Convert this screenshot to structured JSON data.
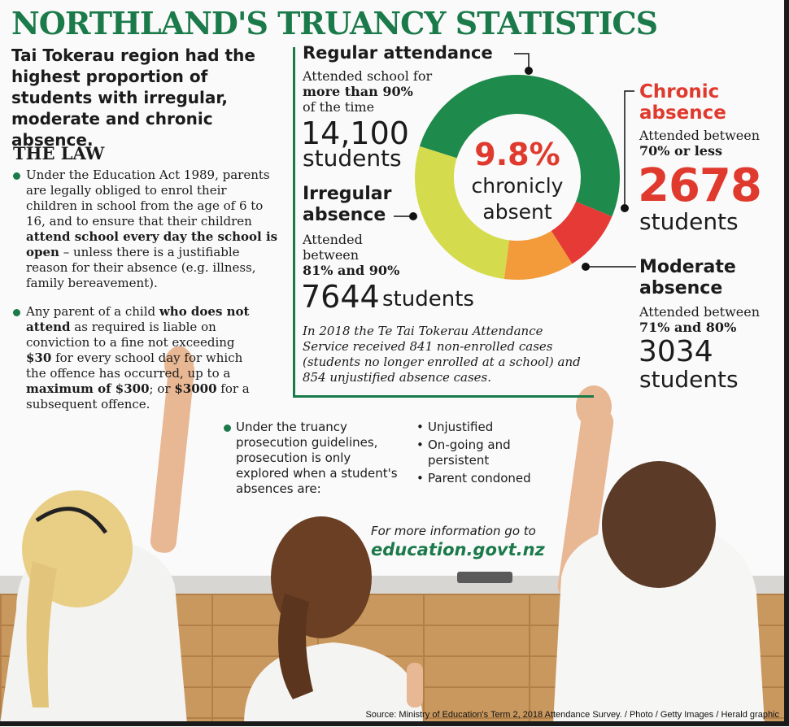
{
  "title": "NORTHLAND'S TRUANCY STATISTICS",
  "intro": "Tai Tokerau region had the highest proportion of students with irregular, moderate and chronic absence.",
  "law": {
    "heading": "THE LAW",
    "bullet1": {
      "p1": "Under the Education Act 1989, parents are legally obliged to enrol their children in school from the age of 6 to 16, and to ensure that their children ",
      "b1": "attend school every day the school is open",
      "p2": " – unless there is a justifiable reason for their absence (e.g. illness, family bereavement)."
    },
    "bullet2": {
      "p1": "Any parent of a child ",
      "b1": "who does not attend",
      "p2": " as required  is liable on conviction to a fine not exceeding ",
      "b2": "$30",
      "p3": " for every school day for which the offence has occurred, up to a ",
      "b3": "maximum of $300",
      "p4": "; or ",
      "b4": "$3000",
      "p5": " for a subsequent offence."
    }
  },
  "center_label": {
    "percent": "9.8%",
    "line1": "chronicly",
    "line2": "absent"
  },
  "chart_data": {
    "type": "pie",
    "donut": true,
    "categories": [
      "Regular attendance",
      "Chronic absence",
      "Moderate absence",
      "Irregular absence"
    ],
    "values": [
      14100,
      2678,
      3034,
      7644
    ],
    "colors": [
      "#1e8a4c",
      "#e53a35",
      "#f39a3a",
      "#d4db4c"
    ],
    "segments": [
      {
        "name": "Regular attendance",
        "desc_pre": "Attended school for ",
        "desc_bold": "more than 90%",
        "desc_post": "of the time",
        "count": "14,100",
        "unit": "students"
      },
      {
        "name1": "Chronic",
        "name2": "absence",
        "desc_pre": "Attended between",
        "desc_bold": "70% or less",
        "count": "2678",
        "unit": "students"
      },
      {
        "name1": "Moderate",
        "name2": "absence",
        "desc_pre": "Attended between",
        "desc_bold": "71% and 80%",
        "count": "3034",
        "unit": "students"
      },
      {
        "name1": "Irregular",
        "name2": "absence",
        "desc_pre1": "Attended",
        "desc_pre2": "between",
        "desc_bold": "81% and 90%",
        "count": "7644",
        "unit": "students"
      }
    ]
  },
  "note": "In 2018 the Te Tai Tokerau Attendance Service received 841 non-enrolled cases (students no longer enrolled at a school) and 854 unjustified absence cases.",
  "prosecution": {
    "text": "Under the truancy prosecution guidelines, prosecution is only explored when a student's absences are:",
    "items": [
      "Unjustified",
      "On-going and persistent",
      "Parent condoned"
    ]
  },
  "more_info": {
    "line1": "For more information go to",
    "link": "education.govt.nz"
  },
  "source": "Source: Ministry of Education's Term 2, 2018 Attendance Survey. / Photo / Getty Images / Herald graphic",
  "colors": {
    "title_green": "#1b7a4a",
    "red": "#e03a2e"
  }
}
